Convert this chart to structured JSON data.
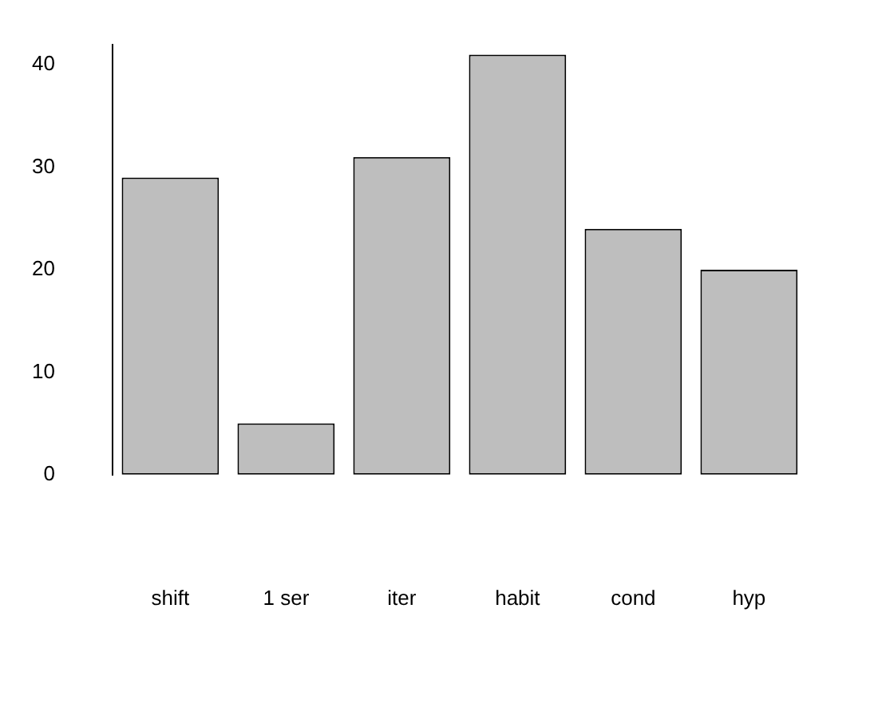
{
  "chart_data": {
    "type": "bar",
    "categories": [
      "shift",
      "1 ser",
      "iter",
      "habit",
      "cond",
      "hyp"
    ],
    "values": [
      29,
      5,
      31,
      41,
      24,
      20
    ],
    "color": "#bebebe",
    "ylim": [
      0,
      42
    ],
    "yticks": [
      0,
      10,
      20,
      30,
      40
    ],
    "grid": false,
    "legend": false
  }
}
